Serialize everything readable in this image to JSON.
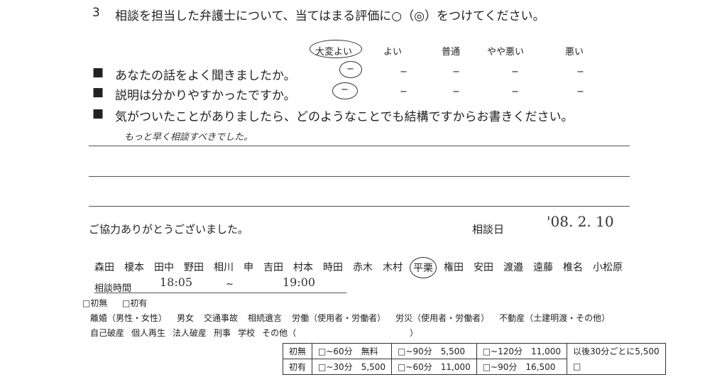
{
  "question": {
    "number": "3",
    "text": "相談を担当した弁護士について、当てはまる評価に○（◎）をつけてください。"
  },
  "ratings": {
    "headers": [
      "大変よい",
      "よい",
      "普通",
      "やや悪い",
      "悪い"
    ],
    "selected": "大変よい",
    "items": [
      {
        "label": "あなたの話をよく聞きましたか。",
        "marks": [
          "−",
          "−",
          "−",
          "−",
          "−"
        ]
      },
      {
        "label": "説明は分かりやすかったですか。",
        "marks": [
          "−",
          "−",
          "−",
          "−",
          "−"
        ]
      }
    ]
  },
  "comment": {
    "prompt": "気がついたことがありましたら、どのようなことでも結構ですからお書きください。",
    "answer": "もっと早く相談すべきでした。"
  },
  "thanks": "ご協力ありがとうございました。",
  "date": {
    "label": "相談日",
    "value": "'08. 2. 10"
  },
  "lawyers": [
    "森田",
    "榎本",
    "田中",
    "野田",
    "相川",
    "申",
    "吉田",
    "村本",
    "時田",
    "赤木",
    "木村",
    "平栗",
    "権田",
    "安田",
    "渡邉",
    "遠藤",
    "椎名",
    "小松原"
  ],
  "selected_lawyer": "平栗",
  "time": {
    "label": "相談時間",
    "start": "18:05",
    "sep": "~",
    "end": "19:00"
  },
  "first_visit": [
    "□初無",
    "□初有"
  ],
  "categories1": [
    "離婚（男性・女性）",
    "男女",
    "交通事故",
    "相続遺言",
    "労働（使用者・労働者）",
    "労災（使用者・労働者）",
    "不動産（土建明渡・その他）"
  ],
  "categories2": [
    "自己破産",
    "個人再生",
    "法人破産",
    "刑事",
    "学校",
    "その他（",
    "）"
  ],
  "fees": [
    [
      "初無",
      "□~60分　無料",
      "□~90分　5,500",
      "□~120分　11,000",
      "以後30分ごとに5,500"
    ],
    [
      "初有",
      "□~30分　5,500",
      "□~60分　11,000",
      "□~90分　16,500",
      "□"
    ]
  ]
}
